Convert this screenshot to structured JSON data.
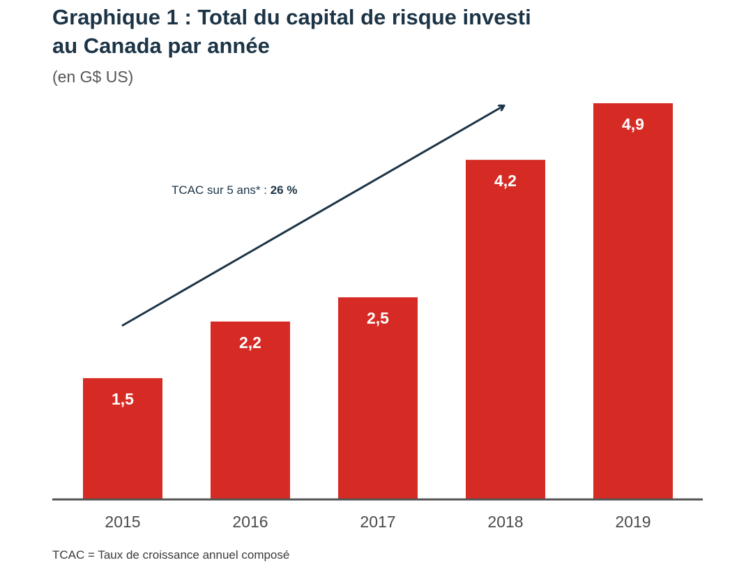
{
  "chart_data": {
    "type": "bar",
    "title": "Graphique 1 : Total du capital de risque investi",
    "title_line2": "au Canada par année",
    "subtitle": "(en G$ US)",
    "categories": [
      "2015",
      "2016",
      "2017",
      "2018",
      "2019"
    ],
    "values": [
      1.5,
      2.2,
      2.5,
      4.2,
      4.9
    ],
    "value_labels": [
      "1,5",
      "2,2",
      "2,5",
      "4,2",
      "4,9"
    ],
    "ylim": [
      0,
      4.9
    ],
    "grid": false,
    "bar_color": "#d62b24",
    "annotation": {
      "text_prefix": "TCAC sur 5 ans* : ",
      "text_value": "26 %",
      "arrow": "trend arrow from 2015 to 2019"
    },
    "footnote": "TCAC = Taux de croissance annuel composé"
  },
  "colors": {
    "bar": "#d62b24",
    "title": "#1c3446",
    "arrow": "#1c3446",
    "axis": "#555555"
  }
}
